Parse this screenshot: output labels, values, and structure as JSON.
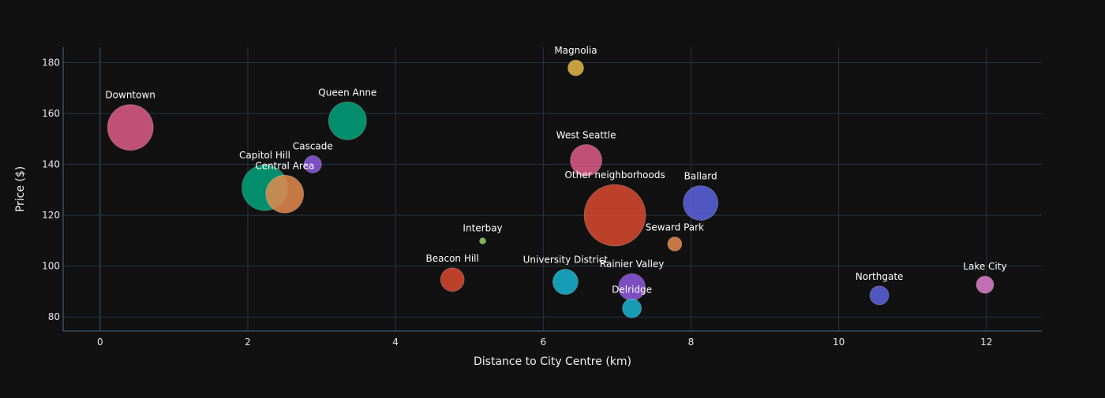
{
  "chart_data": {
    "type": "scatter",
    "subtype": "bubble",
    "title": "",
    "xlabel": "Distance to City Centre (km)",
    "ylabel": "Price ($)",
    "xlim": [
      -0.5,
      12.75
    ],
    "ylim": [
      74.5,
      186
    ],
    "x_ticks": [
      0,
      2,
      4,
      6,
      8,
      10,
      12
    ],
    "y_ticks": [
      80,
      100,
      120,
      140,
      160,
      180
    ],
    "grid": true,
    "legend": "none",
    "colors": {
      "background": "#111111",
      "grid": "#283442",
      "zero_line": "#283442",
      "text": "#f2f5fa"
    },
    "points": [
      {
        "label": "Downtown",
        "x": 0.41,
        "y": 154.5,
        "size": 29,
        "color": "#E05C8A"
      },
      {
        "label": "Capitol Hill",
        "x": 2.23,
        "y": 130.8,
        "size": 29,
        "color": "#00A47C"
      },
      {
        "label": "Central Area",
        "x": 2.5,
        "y": 128.3,
        "size": 24,
        "color": "#E58A4E"
      },
      {
        "label": "Cascade",
        "x": 2.88,
        "y": 140.0,
        "size": 11,
        "color": "#8E59E0"
      },
      {
        "label": "Queen Anne",
        "x": 3.35,
        "y": 157.1,
        "size": 24,
        "color": "#00A47C"
      },
      {
        "label": "Interbay",
        "x": 5.18,
        "y": 109.9,
        "size": 4,
        "color": "#8FD45E"
      },
      {
        "label": "Beacon Hill",
        "x": 4.77,
        "y": 94.7,
        "size": 15,
        "color": "#D94A2F"
      },
      {
        "label": "Magnolia",
        "x": 6.44,
        "y": 177.9,
        "size": 10,
        "color": "#E8B84A"
      },
      {
        "label": "West Seattle",
        "x": 6.58,
        "y": 141.6,
        "size": 20,
        "color": "#E05C8A"
      },
      {
        "label": "University District",
        "x": 6.3,
        "y": 93.8,
        "size": 16,
        "color": "#19B5D2"
      },
      {
        "label": "Other neighborhoods",
        "x": 6.97,
        "y": 120.0,
        "size": 39,
        "color": "#D94A2F"
      },
      {
        "label": "Rainier Valley",
        "x": 7.2,
        "y": 91.8,
        "size": 17,
        "color": "#8E59E0"
      },
      {
        "label": "Delridge",
        "x": 7.2,
        "y": 83.4,
        "size": 12,
        "color": "#19B5D2"
      },
      {
        "label": "Seward Park",
        "x": 7.78,
        "y": 108.7,
        "size": 9,
        "color": "#E58A4E"
      },
      {
        "label": "Ballard",
        "x": 8.13,
        "y": 124.8,
        "size": 22,
        "color": "#5C64E0"
      },
      {
        "label": "Northgate",
        "x": 10.55,
        "y": 88.5,
        "size": 12,
        "color": "#5C64E0"
      },
      {
        "label": "Lake City",
        "x": 11.98,
        "y": 92.7,
        "size": 11,
        "color": "#E07FD0"
      }
    ]
  }
}
